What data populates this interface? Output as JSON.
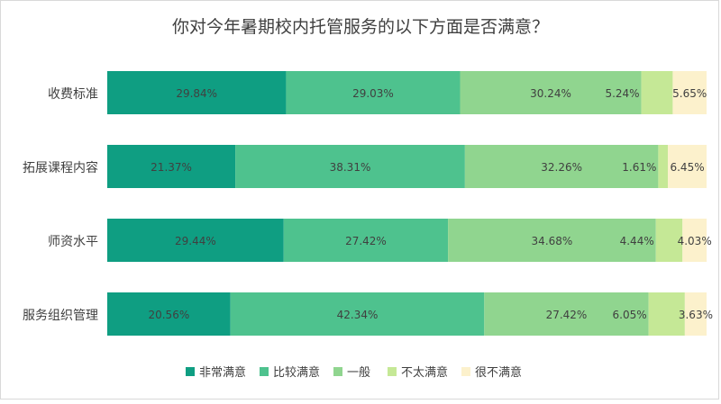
{
  "chart_data": {
    "type": "bar",
    "orientation": "horizontal",
    "stacked": true,
    "percent_stacked": true,
    "title": "你对今年暑期校内托管服务的以下方面是否满意？",
    "categories": [
      "收费标准",
      "拓展课程内容",
      "师资水平",
      "服务组织管理"
    ],
    "series": [
      {
        "name": "非常满意",
        "color": "#0f9e82",
        "values": [
          29.84,
          21.37,
          29.44,
          20.56
        ]
      },
      {
        "name": "比较满意",
        "color": "#4ec28e",
        "values": [
          29.03,
          38.31,
          27.42,
          42.34
        ]
      },
      {
        "name": "一般",
        "color": "#90d58f",
        "values": [
          30.24,
          32.26,
          34.68,
          27.42
        ]
      },
      {
        "name": "不太满意",
        "color": "#c5e896",
        "values": [
          5.24,
          1.61,
          4.44,
          6.05
        ]
      },
      {
        "name": "很不满意",
        "color": "#fcf1cc",
        "values": [
          5.65,
          6.45,
          4.03,
          3.63
        ]
      }
    ],
    "data_labels": [
      [
        "29.84%",
        "29.03%",
        "30.24%",
        "5.24%",
        "5.65%"
      ],
      [
        "21.37%",
        "38.31%",
        "32.26%",
        "1.61%",
        "6.45%"
      ],
      [
        "29.44%",
        "27.42%",
        "34.68%",
        "4.44%",
        "4.03%"
      ],
      [
        "20.56%",
        "42.34%",
        "27.42%",
        "6.05%",
        "3.63%"
      ]
    ],
    "xlim": [
      0,
      100
    ],
    "grid": false,
    "legend_position": "bottom"
  }
}
